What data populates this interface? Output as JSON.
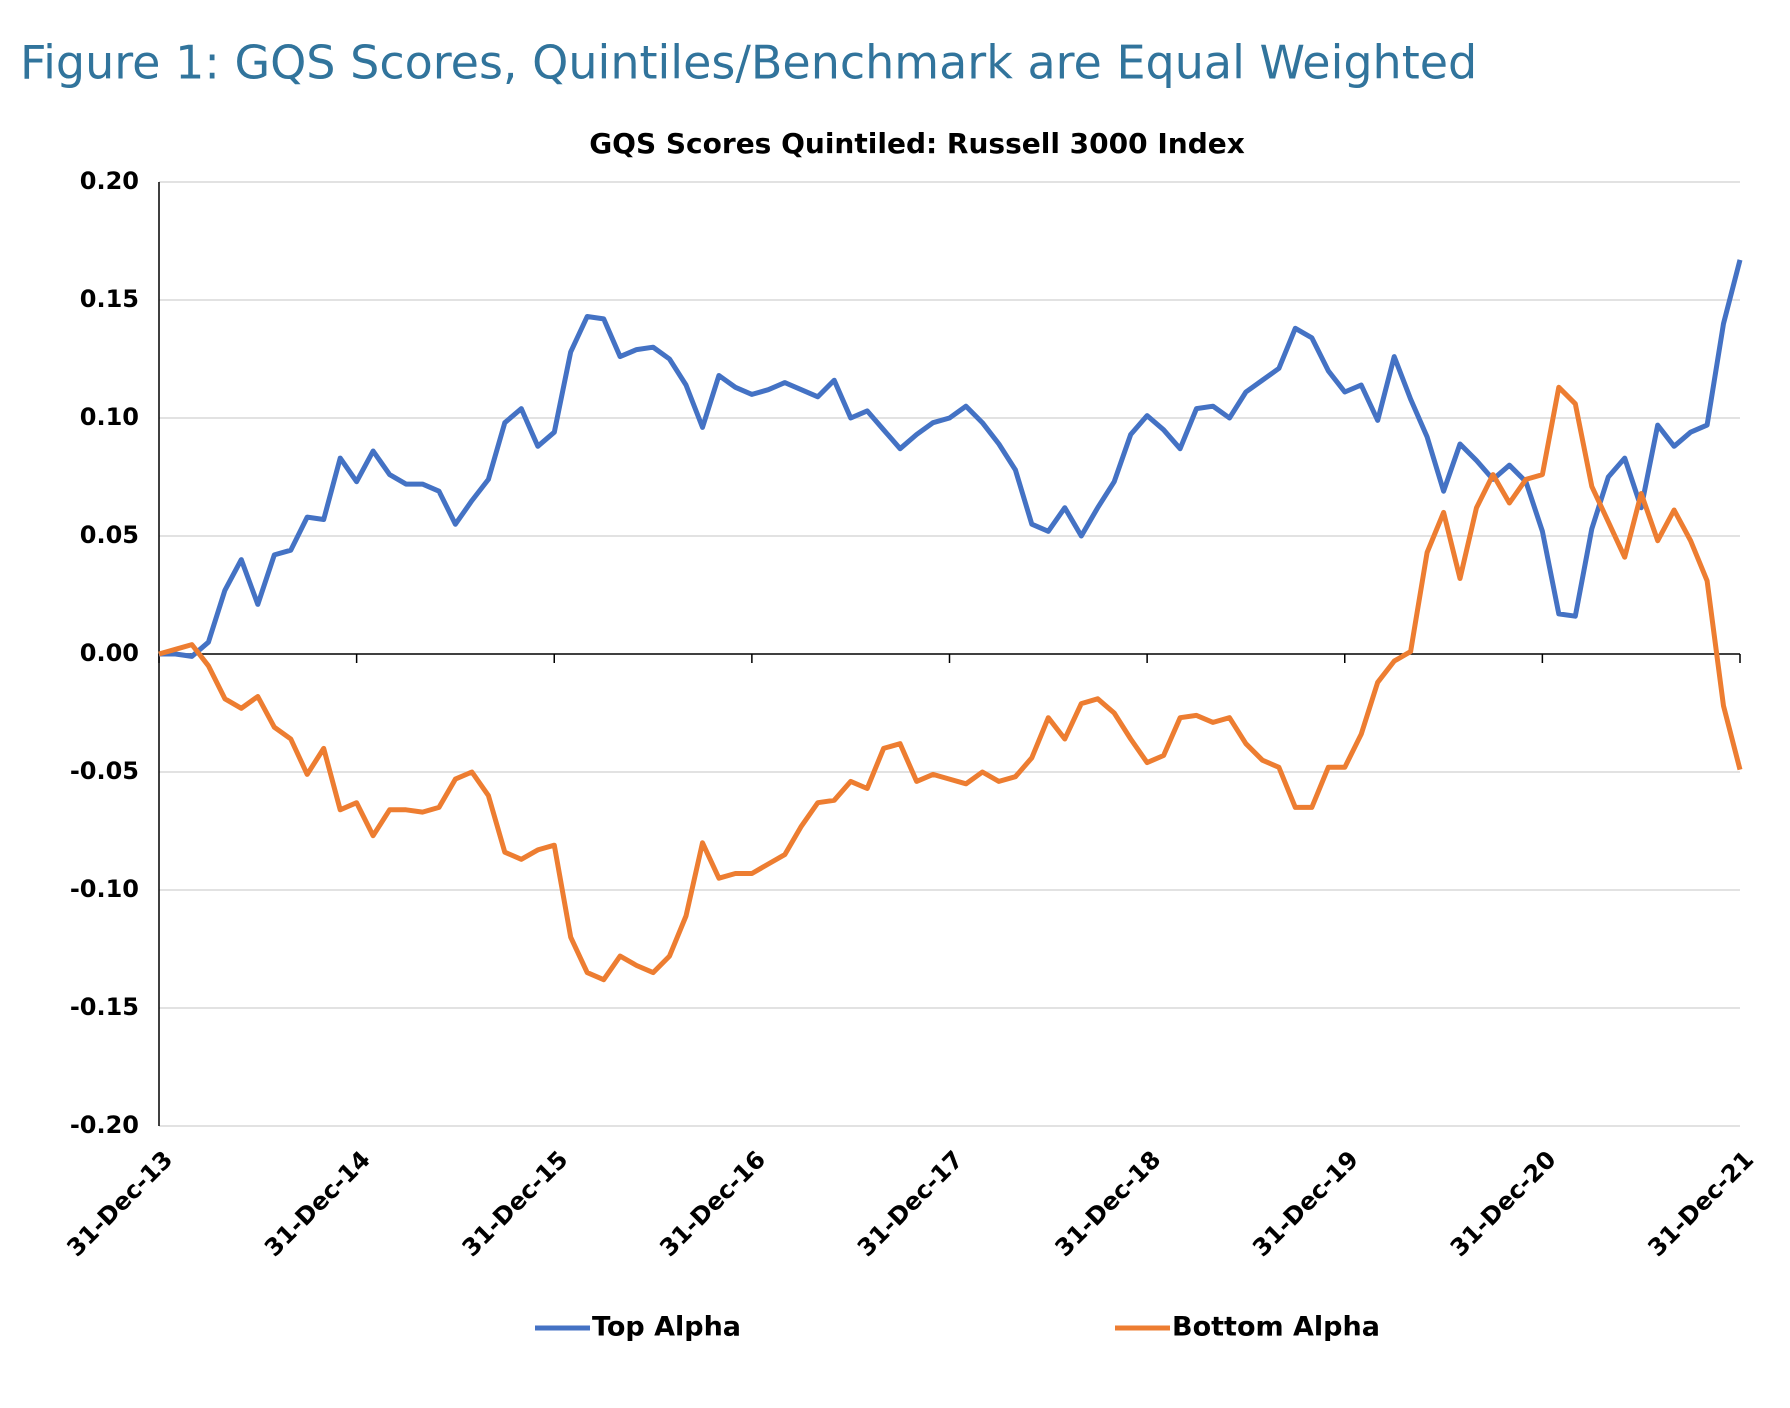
{
  "figure_title": "Figure 1: GQS Scores, Quintiles/Benchmark are Equal Weighted",
  "chart_data": {
    "type": "line",
    "title": "GQS Scores Quintiled: Russell 3000 Index",
    "categories": [
      "31-Dec-13",
      null,
      null,
      null,
      null,
      null,
      null,
      null,
      null,
      null,
      null,
      null,
      "31-Dec-14",
      null,
      null,
      null,
      null,
      null,
      null,
      null,
      null,
      null,
      null,
      null,
      "31-Dec-15",
      null,
      null,
      null,
      null,
      null,
      null,
      null,
      null,
      null,
      null,
      null,
      "31-Dec-16",
      null,
      null,
      null,
      null,
      null,
      null,
      null,
      null,
      null,
      null,
      null,
      "31-Dec-17",
      null,
      null,
      null,
      null,
      null,
      null,
      null,
      null,
      null,
      null,
      null,
      "31-Dec-18",
      null,
      null,
      null,
      null,
      null,
      null,
      null,
      null,
      null,
      null,
      null,
      "31-Dec-19",
      null,
      null,
      null,
      null,
      null,
      null,
      null,
      null,
      null,
      null,
      null,
      "31-Dec-20",
      null,
      null,
      null,
      null,
      null,
      null,
      null,
      null,
      null,
      null,
      null,
      "31-Dec-21"
    ],
    "series": [
      {
        "name": "Top Alpha",
        "color": "#4472c4",
        "values": [
          0,
          0,
          -0.001,
          0.005,
          0.027,
          0.04,
          0.021,
          0.042,
          0.044,
          0.058,
          0.057,
          0.083,
          0.073,
          0.086,
          0.076,
          0.072,
          0.072,
          0.069,
          0.055,
          0.065,
          0.074,
          0.098,
          0.104,
          0.088,
          0.094,
          0.128,
          0.143,
          0.142,
          0.126,
          0.129,
          0.13,
          0.125,
          0.114,
          0.096,
          0.118,
          0.113,
          0.11,
          0.112,
          0.115,
          0.112,
          0.109,
          0.116,
          0.1,
          0.103,
          0.095,
          0.087,
          0.093,
          0.098,
          0.1,
          0.105,
          0.098,
          0.089,
          0.078,
          0.055,
          0.052,
          0.062,
          0.05,
          0.062,
          0.073,
          0.093,
          0.101,
          0.095,
          0.087,
          0.104,
          0.105,
          0.1,
          0.111,
          0.116,
          0.121,
          0.138,
          0.134,
          0.12,
          0.111,
          0.114,
          0.099,
          0.126,
          0.108,
          0.092,
          0.069,
          0.089,
          0.082,
          0.074,
          0.08,
          0.073,
          0.052,
          0.017,
          0.016,
          0.053,
          0.075,
          0.083,
          0.062,
          0.097,
          0.088,
          0.094,
          0.097,
          0.14,
          0.167
        ]
      },
      {
        "name": "Bottom Alpha",
        "color": "#ed7d31",
        "values": [
          0,
          0.002,
          0.004,
          -0.005,
          -0.019,
          -0.023,
          -0.018,
          -0.031,
          -0.036,
          -0.051,
          -0.04,
          -0.066,
          -0.063,
          -0.077,
          -0.066,
          -0.066,
          -0.067,
          -0.065,
          -0.053,
          -0.05,
          -0.06,
          -0.084,
          -0.087,
          -0.083,
          -0.081,
          -0.12,
          -0.135,
          -0.138,
          -0.128,
          -0.132,
          -0.135,
          -0.128,
          -0.111,
          -0.08,
          -0.095,
          -0.093,
          -0.093,
          -0.089,
          -0.085,
          -0.073,
          -0.063,
          -0.062,
          -0.054,
          -0.057,
          -0.04,
          -0.038,
          -0.054,
          -0.051,
          -0.053,
          -0.055,
          -0.05,
          -0.054,
          -0.052,
          -0.044,
          -0.027,
          -0.036,
          -0.021,
          -0.019,
          -0.025,
          -0.036,
          -0.046,
          -0.043,
          -0.027,
          -0.026,
          -0.029,
          -0.027,
          -0.038,
          -0.045,
          -0.048,
          -0.065,
          -0.065,
          -0.048,
          -0.048,
          -0.034,
          -0.012,
          -0.003,
          0.001,
          0.043,
          0.06,
          0.032,
          0.062,
          0.076,
          0.064,
          0.074,
          0.076,
          0.113,
          0.106,
          0.071,
          0.056,
          0.041,
          0.068,
          0.048,
          0.061,
          0.048,
          0.031,
          -0.022,
          -0.049
        ]
      }
    ],
    "ylim": [
      -0.2,
      0.2
    ],
    "yticks": [
      {
        "value": -0.2,
        "label": "-0.20"
      },
      {
        "value": -0.15,
        "label": "-0.15"
      },
      {
        "value": -0.1,
        "label": "-0.10"
      },
      {
        "value": -0.05,
        "label": "-0.05"
      },
      {
        "value": 0,
        "label": "0.00"
      },
      {
        "value": 0.05,
        "label": "0.05"
      },
      {
        "value": 0.1,
        "label": "0.10"
      },
      {
        "value": 0.15,
        "label": "0.15"
      },
      {
        "value": 0.2,
        "label": "0.20"
      }
    ],
    "grid": true,
    "legend": "bottom"
  }
}
